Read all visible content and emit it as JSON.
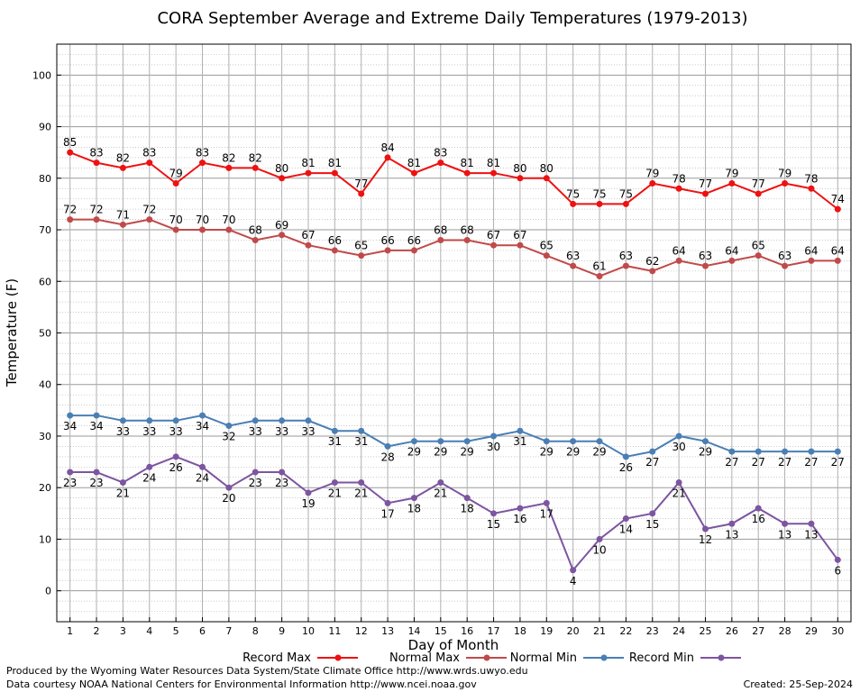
{
  "chart_data": {
    "type": "line",
    "title": "CORA September Average and Extreme Daily Temperatures (1979-2013)",
    "xlabel": "Day of Month",
    "ylabel": "Temperature (F)",
    "x": [
      1,
      2,
      3,
      4,
      5,
      6,
      7,
      8,
      9,
      10,
      11,
      12,
      13,
      14,
      15,
      16,
      17,
      18,
      19,
      20,
      21,
      22,
      23,
      24,
      25,
      26,
      27,
      28,
      29,
      30
    ],
    "xlim": [
      0.5,
      30.5
    ],
    "ylim": [
      -6,
      106
    ],
    "yticks": [
      0,
      10,
      20,
      30,
      40,
      50,
      60,
      70,
      80,
      90,
      100
    ],
    "grid": true,
    "series": [
      {
        "name": "Record Max",
        "color": "#ee1111",
        "labelPos": "above",
        "values": [
          85,
          83,
          82,
          83,
          79,
          83,
          82,
          82,
          80,
          81,
          81,
          77,
          84,
          81,
          83,
          81,
          81,
          80,
          80,
          75,
          75,
          75,
          79,
          78,
          77,
          79,
          77,
          79,
          78,
          74
        ]
      },
      {
        "name": "Normal Max",
        "color": "#c04a4a",
        "labelPos": "above",
        "values": [
          72,
          72,
          71,
          72,
          70,
          70,
          70,
          68,
          69,
          67,
          66,
          65,
          66,
          66,
          68,
          68,
          67,
          67,
          65,
          63,
          61,
          63,
          62,
          64,
          63,
          64,
          65,
          63,
          64,
          64
        ]
      },
      {
        "name": "Normal Min",
        "color": "#4a7fb5",
        "labelPos": "below",
        "values": [
          34,
          34,
          33,
          33,
          33,
          34,
          32,
          33,
          33,
          33,
          31,
          31,
          28,
          29,
          29,
          29,
          30,
          31,
          29,
          29,
          29,
          26,
          27,
          30,
          29,
          27,
          27,
          27,
          27,
          27
        ]
      },
      {
        "name": "Record Min",
        "color": "#7d55a0",
        "labelPos": "below",
        "values": [
          23,
          23,
          21,
          24,
          26,
          24,
          20,
          23,
          23,
          19,
          21,
          21,
          17,
          18,
          21,
          18,
          15,
          16,
          17,
          4,
          10,
          14,
          15,
          21,
          12,
          13,
          16,
          13,
          13,
          6
        ]
      }
    ]
  },
  "footer": {
    "line1": "Produced by the Wyoming Water Resources Data System/State Climate Office http://www.wrds.uwyo.edu",
    "line2": "Data courtesy NOAA National Centers for Environmental Information http://www.ncei.noaa.gov",
    "created": "Created:  25-Sep-2024"
  }
}
